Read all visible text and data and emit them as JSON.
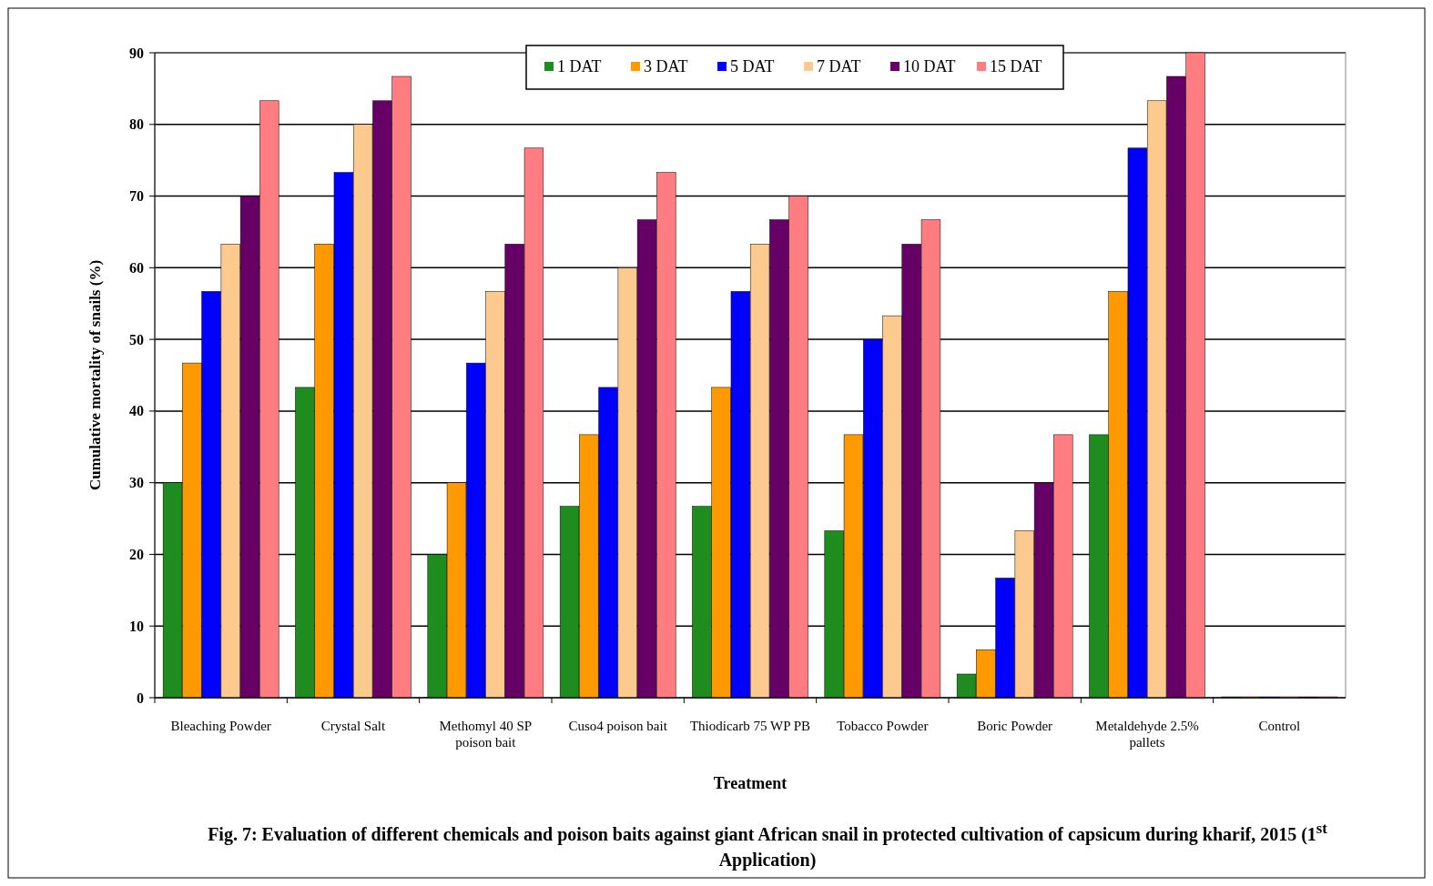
{
  "chart_data": {
    "type": "bar",
    "xlabel": "Treatment",
    "ylabel": "Cumulative mortality of snails (%)",
    "categories": [
      "Bleaching Powder",
      "Crystal Salt",
      "Methomyl 40 SP poison bait",
      "Cuso4 poison bait",
      "Thiodicarb 75 WP PB",
      "Tobacco Powder",
      "Boric Powder",
      "Metaldehyde 2.5% pallets",
      "Control"
    ],
    "series": [
      {
        "name": "1 DAT",
        "color": "#1e8c1e",
        "values": [
          30,
          43.3,
          20,
          26.7,
          26.7,
          23.3,
          3.3,
          36.7,
          0
        ]
      },
      {
        "name": "3 DAT",
        "color": "#ff9900",
        "values": [
          46.7,
          63.3,
          30,
          36.7,
          43.3,
          36.7,
          6.7,
          56.7,
          0
        ]
      },
      {
        "name": "5 DAT",
        "color": "#0000ff",
        "values": [
          56.7,
          73.3,
          46.7,
          43.3,
          56.7,
          50,
          16.7,
          76.7,
          0
        ]
      },
      {
        "name": "7 DAT",
        "color": "#fcc98f",
        "values": [
          63.3,
          80,
          56.7,
          60,
          63.3,
          53.3,
          23.3,
          83.3,
          0
        ]
      },
      {
        "name": "10 DAT",
        "color": "#660066",
        "values": [
          70,
          83.3,
          63.3,
          66.7,
          66.7,
          63.3,
          30,
          86.7,
          0
        ]
      },
      {
        "name": "15 DAT",
        "color": "#ff7c80",
        "values": [
          83.3,
          86.7,
          76.7,
          73.3,
          70,
          66.7,
          36.7,
          90,
          0
        ]
      }
    ],
    "ylim": [
      0,
      90
    ],
    "yticks": [
      0,
      10,
      20,
      30,
      40,
      50,
      60,
      70,
      80,
      90
    ],
    "grid": "y",
    "legend": "top right",
    "annotations": [
      "Fig. 7: Evaluation of different chemicals and poison baits against giant African snail in protected cultivation of capsicum during kharif, 2015 (1$^{st}$ Application)"
    ]
  }
}
